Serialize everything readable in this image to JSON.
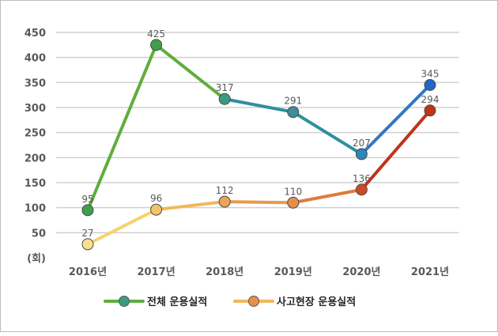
{
  "chart_data": {
    "type": "line",
    "categories": [
      "2016년",
      "2017년",
      "2018년",
      "2019년",
      "2020년",
      "2021년"
    ],
    "y_unit_label": "(회)",
    "ylim": [
      0,
      450
    ],
    "yticks": [
      50,
      100,
      150,
      200,
      250,
      300,
      350,
      400,
      450
    ],
    "grid": true,
    "legend_position": "bottom",
    "series": [
      {
        "name": "전체 운용실적",
        "values": [
          95,
          425,
          317,
          291,
          207,
          345
        ],
        "labels": [
          "95",
          "425",
          "317",
          "291",
          "207",
          "345"
        ],
        "segment_colors": [
          "#5fae3c",
          "#5fae3c",
          "#2f8fa0",
          "#2f8fa0",
          "#2f78c0"
        ],
        "point_colors": [
          "#3fa04a",
          "#3fa04a",
          "#3a9a86",
          "#3a8f9a",
          "#2f86b8",
          "#1f67c8"
        ]
      },
      {
        "name": "사고현장 운용실적",
        "values": [
          27,
          96,
          112,
          110,
          136,
          294
        ],
        "labels": [
          "27",
          "96",
          "112",
          "110",
          "136",
          "294"
        ],
        "segment_colors": [
          "#f6d36b",
          "#f0b85a",
          "#e99a4c",
          "#e07a3a",
          "#c0341a"
        ],
        "point_colors": [
          "#f8df90",
          "#f3c56a",
          "#eba55a",
          "#e5904a",
          "#cc4a26",
          "#c0341a"
        ]
      }
    ],
    "legend_colors": {
      "line_1": "#5fae3c",
      "marker_1": "#3a9a86",
      "line_2": "#f0b85a",
      "marker_2": "#e8914a"
    }
  }
}
